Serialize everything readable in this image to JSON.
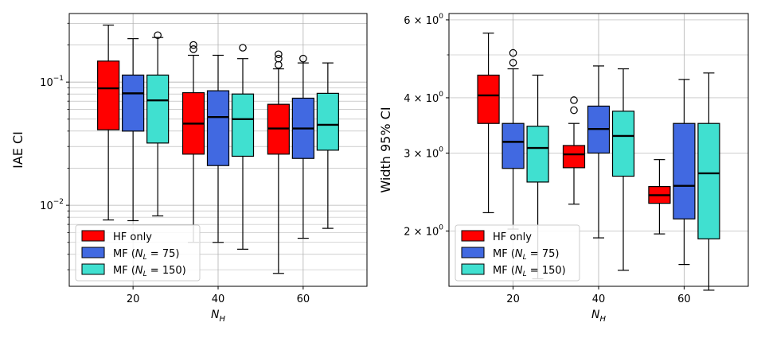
{
  "chart_data": [
    {
      "type": "box",
      "title": "",
      "xlabel": "N_H",
      "ylabel": "IAE CI",
      "yscale": "log",
      "ylim": [
        0.0022,
        0.36
      ],
      "xlim": [
        5,
        75
      ],
      "xticks": [
        20,
        40,
        60
      ],
      "yticks": [
        {
          "value": 0.01,
          "base": "10",
          "exp": "−2"
        },
        {
          "value": 0.1,
          "base": "10",
          "exp": "−1"
        }
      ],
      "grid": "both (major and minor y)",
      "legend_position": "lower-left",
      "series": [
        {
          "name": "HF only",
          "color": "#ff0000",
          "boxes": [
            {
              "x": 20,
              "whislo": 0.0076,
              "q1": 0.041,
              "med": 0.089,
              "q3": 0.148,
              "whishi": 0.29,
              "fliers": []
            },
            {
              "x": 40,
              "whislo": 0.005,
              "q1": 0.026,
              "med": 0.046,
              "q3": 0.082,
              "whishi": 0.165,
              "fliers": [
                0.185,
                0.2
              ]
            },
            {
              "x": 60,
              "whislo": 0.0028,
              "q1": 0.026,
              "med": 0.042,
              "q3": 0.066,
              "whishi": 0.128,
              "fliers": [
                0.138,
                0.155,
                0.168
              ]
            }
          ]
        },
        {
          "name": "MF (N_L = 75)",
          "color": "#4169e1",
          "boxes": [
            {
              "x": 20,
              "whislo": 0.0075,
              "q1": 0.04,
              "med": 0.081,
              "q3": 0.114,
              "whishi": 0.225,
              "fliers": []
            },
            {
              "x": 40,
              "whislo": 0.005,
              "q1": 0.021,
              "med": 0.052,
              "q3": 0.085,
              "whishi": 0.165,
              "fliers": []
            },
            {
              "x": 60,
              "whislo": 0.0054,
              "q1": 0.024,
              "med": 0.042,
              "q3": 0.074,
              "whishi": 0.143,
              "fliers": [
                0.155
              ]
            }
          ]
        },
        {
          "name": "MF (N_L = 150)",
          "color": "#40e0d0",
          "boxes": [
            {
              "x": 20,
              "whislo": 0.0082,
              "q1": 0.032,
              "med": 0.071,
              "q3": 0.114,
              "whishi": 0.23,
              "fliers": [
                0.24
              ]
            },
            {
              "x": 40,
              "whislo": 0.0044,
              "q1": 0.025,
              "med": 0.05,
              "q3": 0.08,
              "whishi": 0.155,
              "fliers": [
                0.19
              ]
            },
            {
              "x": 60,
              "whislo": 0.0065,
              "q1": 0.028,
              "med": 0.045,
              "q3": 0.081,
              "whishi": 0.143,
              "fliers": []
            }
          ]
        }
      ]
    },
    {
      "type": "box",
      "title": "",
      "xlabel": "N_H",
      "ylabel": "Width 95% CI",
      "yscale": "log",
      "ylim": [
        1.5,
        6.2
      ],
      "xlim": [
        5,
        75
      ],
      "xticks": [
        20,
        40,
        60
      ],
      "yticks": [
        {
          "value": 2,
          "base": "2 × 10",
          "exp": "0"
        },
        {
          "value": 3,
          "base": "3 × 10",
          "exp": "0"
        },
        {
          "value": 4,
          "base": "4 × 10",
          "exp": "0"
        },
        {
          "value": 6,
          "base": "6 × 10",
          "exp": "0"
        }
      ],
      "grid": "both",
      "legend_position": "lower-left",
      "series": [
        {
          "name": "HF only",
          "color": "#ff0000",
          "boxes": [
            {
              "x": 20,
              "whislo": 2.2,
              "q1": 3.5,
              "med": 4.05,
              "q3": 4.5,
              "whishi": 5.6,
              "fliers": []
            },
            {
              "x": 40,
              "whislo": 2.3,
              "q1": 2.78,
              "med": 2.98,
              "q3": 3.12,
              "whishi": 3.5,
              "fliers": [
                3.75,
                3.95
              ]
            },
            {
              "x": 60,
              "whislo": 1.97,
              "q1": 2.31,
              "med": 2.41,
              "q3": 2.52,
              "whishi": 2.9,
              "fliers": []
            }
          ]
        },
        {
          "name": "MF (N_L = 75)",
          "color": "#4169e1",
          "boxes": [
            {
              "x": 20,
              "whislo": 2.02,
              "q1": 2.77,
              "med": 3.18,
              "q3": 3.5,
              "whishi": 4.65,
              "fliers": [
                4.8,
                5.05
              ]
            },
            {
              "x": 40,
              "whislo": 1.93,
              "q1": 3.0,
              "med": 3.4,
              "q3": 3.83,
              "whishi": 4.72,
              "fliers": []
            },
            {
              "x": 60,
              "whislo": 1.68,
              "q1": 2.13,
              "med": 2.53,
              "q3": 3.5,
              "whishi": 4.4,
              "fliers": []
            }
          ]
        },
        {
          "name": "MF (N_L = 150)",
          "color": "#40e0d0",
          "boxes": [
            {
              "x": 20,
              "whislo": 1.56,
              "q1": 2.58,
              "med": 3.08,
              "q3": 3.45,
              "whishi": 4.5,
              "fliers": []
            },
            {
              "x": 40,
              "whislo": 1.63,
              "q1": 2.66,
              "med": 3.28,
              "q3": 3.73,
              "whishi": 4.65,
              "fliers": []
            },
            {
              "x": 60,
              "whislo": 1.47,
              "q1": 1.92,
              "med": 2.7,
              "q3": 3.5,
              "whishi": 4.55,
              "fliers": []
            }
          ]
        }
      ]
    }
  ],
  "legend": {
    "labels": [
      {
        "prefix": "HF only",
        "sub": "",
        "value": ""
      },
      {
        "prefix": "MF (",
        "sub": "L",
        "value": " = 75)"
      },
      {
        "prefix": "MF (",
        "sub": "L",
        "value": " = 150)"
      }
    ]
  },
  "xlabel_parts": {
    "main": "N",
    "sub": "H"
  }
}
